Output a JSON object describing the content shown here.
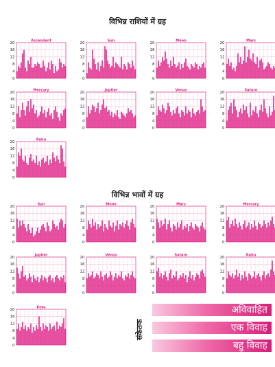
{
  "sections": [
    {
      "title": "विभिन्न राशियों में ग्रह"
    },
    {
      "title": "विभिन्न भावों में ग्रह"
    }
  ],
  "colors": {
    "bar": "#e0288a",
    "grid": "#f3a0c6",
    "frame": "#d9207f",
    "text": "#222222"
  },
  "legend": {
    "title": "संकेतक",
    "items": [
      "अविवाहित",
      "एक विवाह",
      "बहु विवाह"
    ]
  },
  "chart_data": [
    {
      "type": "bar",
      "section": 0,
      "title": "Ascendent",
      "ylim": [
        0,
        20
      ],
      "yticks": [
        0,
        4,
        8,
        12,
        16,
        20
      ],
      "values": [
        4,
        7,
        6,
        9,
        14,
        16,
        6,
        4,
        10,
        8,
        12,
        6,
        6,
        8,
        7,
        9,
        8,
        6,
        6,
        10,
        7,
        4,
        6,
        9,
        5,
        10,
        8,
        3,
        7,
        4,
        5,
        11,
        9,
        6,
        8,
        7
      ]
    },
    {
      "type": "bar",
      "section": 0,
      "title": "Sun",
      "ylim": [
        0,
        20
      ],
      "yticks": [
        0,
        4,
        8,
        12,
        16,
        20
      ],
      "values": [
        3,
        9,
        6,
        5,
        16,
        11,
        8,
        5,
        9,
        4,
        7,
        10,
        6,
        18,
        16,
        10,
        8,
        6,
        7,
        12,
        6,
        9,
        8,
        7,
        6,
        12,
        5,
        8,
        7,
        5,
        9,
        8,
        6,
        10,
        7,
        5
      ]
    },
    {
      "type": "bar",
      "section": 0,
      "title": "Moon",
      "ylim": [
        0,
        20
      ],
      "yticks": [
        0,
        4,
        8,
        12,
        16,
        20
      ],
      "values": [
        6,
        10,
        7,
        9,
        12,
        10,
        15,
        11,
        8,
        6,
        10,
        7,
        12,
        8,
        6,
        7,
        9,
        5,
        8,
        6,
        9,
        11,
        7,
        6,
        5,
        8,
        7,
        6,
        9,
        8,
        5,
        7,
        6,
        8,
        9,
        6
      ]
    },
    {
      "type": "bar",
      "section": 0,
      "title": "Mars",
      "ylim": [
        0,
        20
      ],
      "yticks": [
        0,
        4,
        8,
        12,
        16,
        20
      ],
      "values": [
        8,
        11,
        7,
        9,
        5,
        6,
        4,
        7,
        14,
        9,
        12,
        8,
        10,
        18,
        9,
        12,
        16,
        11,
        10,
        14,
        9,
        8,
        12,
        6,
        10,
        11,
        9,
        5,
        6,
        7,
        9,
        8,
        6,
        5,
        7,
        6
      ]
    },
    {
      "type": "bar",
      "section": 0,
      "title": "Mercury",
      "ylim": [
        0,
        20
      ],
      "yticks": [
        0,
        4,
        8,
        12,
        16,
        20
      ],
      "values": [
        8,
        12,
        6,
        10,
        14,
        10,
        7,
        12,
        15,
        9,
        16,
        11,
        13,
        8,
        10,
        6,
        7,
        9,
        12,
        8,
        10,
        6,
        9,
        11,
        7,
        8,
        5,
        10,
        12,
        9,
        6,
        4,
        8,
        7,
        10,
        11
      ]
    },
    {
      "type": "bar",
      "section": 0,
      "title": "Jupiter",
      "ylim": [
        0,
        20
      ],
      "yticks": [
        0,
        4,
        8,
        12,
        16,
        20
      ],
      "values": [
        6,
        12,
        8,
        10,
        13,
        12,
        9,
        11,
        14,
        8,
        10,
        13,
        16,
        11,
        12,
        9,
        10,
        7,
        9,
        6,
        8,
        7,
        10,
        6,
        5,
        9,
        8,
        7,
        6,
        8,
        11,
        9,
        10,
        8,
        6,
        7
      ]
    },
    {
      "type": "bar",
      "section": 0,
      "title": "Venus",
      "ylim": [
        0,
        20
      ],
      "yticks": [
        0,
        4,
        8,
        12,
        16,
        20
      ],
      "values": [
        7,
        12,
        10,
        9,
        13,
        11,
        8,
        10,
        14,
        12,
        9,
        7,
        10,
        8,
        11,
        12,
        8,
        6,
        10,
        9,
        7,
        12,
        8,
        10,
        9,
        6,
        11,
        8,
        7,
        9,
        10,
        8,
        16,
        12,
        9,
        10
      ]
    },
    {
      "type": "bar",
      "section": 0,
      "title": "Saturn",
      "ylim": [
        0,
        20
      ],
      "yticks": [
        0,
        4,
        8,
        12,
        16,
        20
      ],
      "values": [
        4,
        10,
        12,
        14,
        8,
        16,
        12,
        10,
        6,
        9,
        11,
        8,
        13,
        10,
        12,
        8,
        6,
        14,
        7,
        10,
        9,
        12,
        8,
        6,
        10,
        13,
        9,
        16,
        11,
        8,
        6,
        12,
        7,
        9,
        18,
        10
      ]
    },
    {
      "type": "bar",
      "section": 0,
      "title": "Rahu",
      "ylim": [
        0,
        20
      ],
      "yticks": [
        0,
        4,
        8,
        12,
        16,
        20
      ],
      "values": [
        6,
        14,
        12,
        16,
        10,
        9,
        12,
        8,
        7,
        11,
        13,
        9,
        10,
        8,
        12,
        7,
        9,
        6,
        10,
        11,
        8,
        9,
        12,
        7,
        10,
        8,
        14,
        11,
        9,
        12,
        10,
        8,
        18,
        16,
        9,
        6
      ]
    },
    {
      "type": "bar",
      "section": 1,
      "title": "Sun",
      "ylim": [
        0,
        20
      ],
      "yticks": [
        0,
        4,
        8,
        12,
        16,
        20
      ],
      "values": [
        13,
        8,
        12,
        9,
        12,
        10,
        8,
        6,
        10,
        7,
        5,
        8,
        3,
        4,
        6,
        8,
        5,
        7,
        9,
        10,
        8,
        6,
        11,
        9,
        6,
        7,
        12,
        10,
        8,
        9,
        7,
        11,
        13,
        12,
        8,
        10
      ]
    },
    {
      "type": "bar",
      "section": 1,
      "title": "Moon",
      "ylim": [
        0,
        20
      ],
      "yticks": [
        0,
        4,
        8,
        12,
        16,
        20
      ],
      "values": [
        7,
        12,
        10,
        8,
        13,
        9,
        11,
        7,
        10,
        8,
        9,
        12,
        6,
        10,
        8,
        7,
        12,
        9,
        8,
        11,
        6,
        9,
        12,
        7,
        10,
        9,
        11,
        8,
        10,
        12,
        9,
        7,
        11,
        13,
        10,
        8
      ]
    },
    {
      "type": "bar",
      "section": 1,
      "title": "Mars",
      "ylim": [
        0,
        20
      ],
      "yticks": [
        0,
        4,
        8,
        12,
        16,
        20
      ],
      "values": [
        13,
        11,
        8,
        12,
        9,
        10,
        13,
        7,
        10,
        12,
        8,
        6,
        10,
        9,
        7,
        11,
        8,
        10,
        12,
        7,
        9,
        8,
        10,
        6,
        9,
        11,
        8,
        7,
        10,
        9,
        8,
        6,
        9,
        11,
        8,
        7
      ]
    },
    {
      "type": "bar",
      "section": 1,
      "title": "Mercury",
      "ylim": [
        0,
        20
      ],
      "yticks": [
        0,
        4,
        8,
        12,
        16,
        20
      ],
      "values": [
        12,
        14,
        8,
        10,
        12,
        9,
        13,
        10,
        8,
        11,
        9,
        7,
        10,
        12,
        8,
        9,
        11,
        7,
        10,
        8,
        12,
        9,
        7,
        11,
        10,
        8,
        9,
        12,
        10,
        8,
        11,
        9,
        12,
        14,
        10,
        8
      ]
    },
    {
      "type": "bar",
      "section": 1,
      "title": "Jupiter",
      "ylim": [
        0,
        20
      ],
      "yticks": [
        0,
        4,
        8,
        12,
        16,
        20
      ],
      "values": [
        14,
        11,
        8,
        12,
        15,
        9,
        10,
        7,
        8,
        11,
        9,
        6,
        10,
        8,
        7,
        9,
        6,
        8,
        10,
        7,
        9,
        8,
        6,
        9,
        10,
        7,
        8,
        6,
        9,
        10,
        8,
        7,
        9,
        8,
        10,
        6
      ]
    },
    {
      "type": "bar",
      "section": 1,
      "title": "Venus",
      "ylim": [
        0,
        20
      ],
      "yticks": [
        0,
        4,
        8,
        12,
        16,
        20
      ],
      "values": [
        8,
        11,
        9,
        10,
        12,
        8,
        9,
        11,
        10,
        8,
        12,
        9,
        7,
        10,
        11,
        8,
        9,
        12,
        10,
        7,
        9,
        11,
        8,
        10,
        9,
        12,
        8,
        7,
        10,
        9,
        11,
        8,
        10,
        12,
        9,
        8
      ]
    },
    {
      "type": "bar",
      "section": 1,
      "title": "Saturn",
      "ylim": [
        0,
        20
      ],
      "yticks": [
        0,
        4,
        8,
        12,
        16,
        20
      ],
      "values": [
        12,
        14,
        9,
        11,
        8,
        10,
        12,
        9,
        7,
        11,
        13,
        8,
        10,
        9,
        12,
        7,
        8,
        10,
        9,
        11,
        8,
        10,
        6,
        9,
        12,
        8,
        10,
        7,
        9,
        11,
        10,
        8,
        12,
        13,
        11,
        9
      ]
    },
    {
      "type": "bar",
      "section": 1,
      "title": "Rahu",
      "ylim": [
        0,
        20
      ],
      "yticks": [
        0,
        4,
        8,
        12,
        16,
        20
      ],
      "values": [
        8,
        12,
        10,
        9,
        11,
        8,
        10,
        13,
        9,
        11,
        7,
        10,
        8,
        12,
        9,
        7,
        11,
        10,
        8,
        9,
        12,
        8,
        10,
        11,
        9,
        7,
        10,
        12,
        8,
        10,
        11,
        9,
        13,
        18,
        12,
        10
      ]
    },
    {
      "type": "bar",
      "section": 1,
      "title": "Ketu",
      "ylim": [
        0,
        20
      ],
      "yticks": [
        0,
        4,
        8,
        12,
        16,
        20
      ],
      "values": [
        9,
        12,
        8,
        10,
        13,
        9,
        11,
        8,
        10,
        9,
        12,
        7,
        10,
        8,
        11,
        9,
        16,
        10,
        8,
        12,
        9,
        11,
        10,
        8,
        12,
        9,
        10,
        11,
        8,
        13,
        9,
        11,
        10,
        12,
        15,
        9
      ]
    }
  ]
}
